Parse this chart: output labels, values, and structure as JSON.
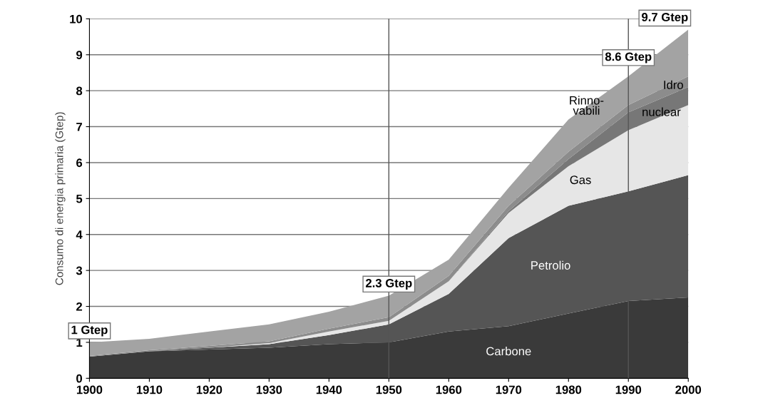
{
  "chart_data": {
    "type": "area",
    "stacked": true,
    "ylabel": "Consumo di energia primaria (Gtep)",
    "x": [
      1900,
      1910,
      1920,
      1930,
      1940,
      1950,
      1960,
      1970,
      1980,
      1990,
      2000
    ],
    "series": [
      {
        "name": "Carbone",
        "color": "#3a3a3a",
        "values": [
          0.6,
          0.75,
          0.8,
          0.85,
          0.95,
          1.0,
          1.3,
          1.45,
          1.8,
          2.15,
          2.25
        ]
      },
      {
        "name": "Petrolio",
        "color": "#555555",
        "values": [
          0,
          0,
          0.05,
          0.1,
          0.25,
          0.5,
          1.05,
          2.45,
          3.0,
          3.05,
          3.4
        ]
      },
      {
        "name": "Gas",
        "color": "#e6e6e6",
        "values": [
          0,
          0,
          0,
          0.03,
          0.1,
          0.1,
          0.35,
          0.7,
          1.1,
          1.7,
          1.95
        ]
      },
      {
        "name": "nuclear",
        "color": "#777777",
        "values": [
          0,
          0,
          0,
          0,
          0,
          0,
          0,
          0.05,
          0.2,
          0.5,
          0.5
        ]
      },
      {
        "name": "Idro",
        "color": "#8c8c8c",
        "values": [
          0.02,
          0.03,
          0.05,
          0.05,
          0.08,
          0.1,
          0.15,
          0.15,
          0.2,
          0.2,
          0.3
        ]
      },
      {
        "name": "Rinno-\nvabili",
        "color": "#a3a3a3",
        "values": [
          0.38,
          0.32,
          0.4,
          0.47,
          0.47,
          0.6,
          0.45,
          0.5,
          0.9,
          0.8,
          1.3
        ]
      }
    ],
    "annotations": [
      {
        "text": "1 Gtep",
        "x": 1900,
        "y": 1
      },
      {
        "text": "2.3 Gtep",
        "x": 1950,
        "y": 2.3
      },
      {
        "text": "8.6 Gtep",
        "x": 1990,
        "y": 8.6
      },
      {
        "text": "9.7 Gtep",
        "x": 2000,
        "y": 9.7
      }
    ],
    "ref_lines": [
      {
        "axis": "x",
        "value": 1950,
        "color": "#555555"
      },
      {
        "axis": "x",
        "value": 1990,
        "color": "#555555"
      }
    ],
    "xlim": [
      1900,
      2000
    ],
    "xticks": [
      1900,
      1910,
      1920,
      1930,
      1940,
      1950,
      1960,
      1970,
      1980,
      1990,
      2000
    ],
    "ylim": [
      0,
      10
    ],
    "yticks": [
      0,
      1,
      2,
      3,
      4,
      5,
      6,
      7,
      8,
      9,
      10
    ],
    "grid": "y",
    "legend": false
  }
}
